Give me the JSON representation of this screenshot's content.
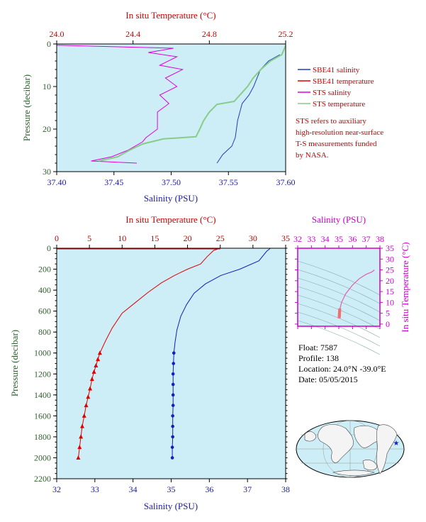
{
  "colors": {
    "panel_bg": "#cdeef6",
    "sbe_salinity": "#1f3fbf",
    "sbe_temperature": "#e00000",
    "sts_salinity": "#e000e0",
    "sts_temperature": "#88cc88",
    "deep_temperature": "#e00000",
    "deep_salinity": "#1020c0"
  },
  "legend": {
    "items": [
      {
        "label": "SBE41 salinity",
        "color": "#1f3fbf"
      },
      {
        "label": "SBE41 temperature",
        "color": "#e00000"
      },
      {
        "label": "STS salinity",
        "color": "#e000e0"
      },
      {
        "label": "STS temperature",
        "color": "#88cc88"
      }
    ],
    "note_lines": [
      "STS refers to auxiliary",
      "high-resolution near-surface",
      "T-S measurements funded",
      "by NASA."
    ]
  },
  "info": {
    "float": "Float:  7587",
    "profile": "Profile:  138",
    "location": "Location:  24.0°N  -39.0°E",
    "date": "Date:  05/05/2015"
  },
  "chart_data": [
    {
      "type": "line",
      "panel": "near-surface profile",
      "xlabel_bottom": "Salinity (PSU)",
      "xlabel_top": "In situ Temperature (°C)",
      "ylabel": "Pressure (decibar)",
      "salinity_range": [
        37.4,
        37.6
      ],
      "salinity_ticks": [
        "37.40",
        "37.45",
        "37.50",
        "37.55",
        "37.60"
      ],
      "temperature_range": [
        24.0,
        25.2
      ],
      "temperature_ticks": [
        "24.0",
        "24.4",
        "24.8",
        "25.2"
      ],
      "pressure_range": [
        0,
        30
      ],
      "pressure_ticks": [
        "0",
        "10",
        "20",
        "30"
      ],
      "series": [
        {
          "name": "SBE41 salinity",
          "axis": "salinity",
          "points": [
            [
              37.595,
              2.5
            ],
            [
              37.585,
              4
            ],
            [
              37.578,
              6
            ],
            [
              37.575,
              8
            ],
            [
              37.572,
              10
            ],
            [
              37.568,
              12
            ],
            [
              37.562,
              14
            ],
            [
              37.56,
              16
            ],
            [
              37.558,
              18
            ],
            [
              37.557,
              20
            ],
            [
              37.556,
              22
            ],
            [
              37.553,
              24
            ],
            [
              37.545,
              26
            ],
            [
              37.54,
              28
            ]
          ]
        },
        {
          "name": "SBE41 temperature",
          "axis": "temperature",
          "points": [
            [
              25.2,
              0.4
            ],
            [
              25.18,
              2.5
            ],
            [
              25.12,
              4
            ],
            [
              25.07,
              6
            ],
            [
              25.03,
              8
            ],
            [
              25.0,
              10
            ],
            [
              24.96,
              12
            ],
            [
              24.93,
              13.5
            ],
            [
              24.84,
              14.2
            ],
            [
              24.8,
              16
            ],
            [
              24.77,
              18
            ],
            [
              24.75,
              20
            ],
            [
              24.73,
              21.8
            ],
            [
              24.56,
              22.3
            ],
            [
              24.45,
              23.5
            ],
            [
              24.38,
              25
            ],
            [
              24.32,
              26.5
            ],
            [
              24.22,
              27.5
            ]
          ]
        },
        {
          "name": "STS salinity",
          "axis": "salinity",
          "points": [
            [
              37.4,
              0.3
            ],
            [
              37.502,
              1
            ],
            [
              37.48,
              2
            ],
            [
              37.505,
              3
            ],
            [
              37.49,
              5
            ],
            [
              37.51,
              6
            ],
            [
              37.495,
              8
            ],
            [
              37.505,
              10
            ],
            [
              37.49,
              12
            ],
            [
              37.498,
              14
            ],
            [
              37.488,
              16
            ],
            [
              37.488,
              18
            ],
            [
              37.488,
              20
            ],
            [
              37.478,
              22
            ],
            [
              37.475,
              23
            ],
            [
              37.462,
              25
            ],
            [
              37.448,
              26.5
            ],
            [
              37.43,
              27.5
            ],
            [
              37.47,
              28
            ]
          ]
        },
        {
          "name": "STS temperature",
          "axis": "temperature",
          "points": [
            [
              25.2,
              0.4
            ],
            [
              25.18,
              2.5
            ],
            [
              25.12,
              4
            ],
            [
              25.07,
              6
            ],
            [
              25.03,
              8
            ],
            [
              25.0,
              10
            ],
            [
              24.96,
              12
            ],
            [
              24.93,
              13.5
            ],
            [
              24.84,
              14.2
            ],
            [
              24.8,
              16
            ],
            [
              24.77,
              18
            ],
            [
              24.75,
              20
            ],
            [
              24.73,
              21.8
            ],
            [
              24.56,
              22.3
            ],
            [
              24.45,
              23.5
            ],
            [
              24.38,
              25
            ],
            [
              24.32,
              26.5
            ],
            [
              24.22,
              27.5
            ]
          ]
        }
      ]
    },
    {
      "type": "line",
      "panel": "full-depth profile",
      "xlabel_bottom": "Salinity (PSU)",
      "xlabel_top": "In situ Temperature (°C)",
      "ylabel": "Pressure (decibar)",
      "salinity_range": [
        32,
        38
      ],
      "salinity_ticks": [
        "32",
        "33",
        "34",
        "35",
        "36",
        "37",
        "38"
      ],
      "temperature_range": [
        0,
        35
      ],
      "temperature_ticks": [
        "0",
        "5",
        "10",
        "15",
        "20",
        "25",
        "30",
        "35"
      ],
      "pressure_range": [
        0,
        2200
      ],
      "pressure_ticks": [
        "0",
        "200",
        "400",
        "600",
        "800",
        "1000",
        "1200",
        "1400",
        "1600",
        "1800",
        "2000",
        "2200"
      ],
      "series": [
        {
          "name": "temperature",
          "axis": "temperature",
          "points": [
            [
              25.0,
              0
            ],
            [
              24.0,
              20
            ],
            [
              23.0,
              80
            ],
            [
              22.0,
              150
            ],
            [
              20.0,
              200
            ],
            [
              18.0,
              260
            ],
            [
              16.0,
              330
            ],
            [
              14.0,
              420
            ],
            [
              12.0,
              520
            ],
            [
              10.0,
              620
            ],
            [
              8.5,
              760
            ],
            [
              7.5,
              880
            ],
            [
              6.6,
              1000
            ],
            [
              6.3,
              1060
            ],
            [
              6.0,
              1120
            ],
            [
              5.7,
              1180
            ],
            [
              5.4,
              1250
            ],
            [
              5.1,
              1340
            ],
            [
              4.8,
              1420
            ],
            [
              4.5,
              1500
            ],
            [
              4.2,
              1600
            ],
            [
              3.9,
              1700
            ],
            [
              3.7,
              1800
            ],
            [
              3.5,
              1900
            ],
            [
              3.3,
              2000
            ]
          ]
        },
        {
          "name": "salinity",
          "axis": "salinity",
          "points": [
            [
              37.6,
              0
            ],
            [
              37.5,
              30
            ],
            [
              37.3,
              120
            ],
            [
              36.8,
              200
            ],
            [
              36.3,
              260
            ],
            [
              35.9,
              340
            ],
            [
              35.6,
              430
            ],
            [
              35.4,
              540
            ],
            [
              35.25,
              650
            ],
            [
              35.15,
              780
            ],
            [
              35.1,
              900
            ],
            [
              35.07,
              1000
            ],
            [
              35.06,
              1100
            ],
            [
              35.05,
              1200
            ],
            [
              35.05,
              1300
            ],
            [
              35.05,
              1400
            ],
            [
              35.05,
              1500
            ],
            [
              35.04,
              1600
            ],
            [
              35.04,
              1700
            ],
            [
              35.04,
              1800
            ],
            [
              35.03,
              1900
            ],
            [
              35.03,
              2000
            ]
          ]
        }
      ],
      "markers": {
        "temperature_points": [
          [
            6.6,
            1000
          ],
          [
            6.3,
            1060
          ],
          [
            6.0,
            1120
          ],
          [
            5.7,
            1180
          ],
          [
            5.4,
            1250
          ],
          [
            5.1,
            1340
          ],
          [
            4.8,
            1420
          ],
          [
            4.5,
            1500
          ],
          [
            4.2,
            1600
          ],
          [
            3.9,
            1700
          ],
          [
            3.7,
            1800
          ],
          [
            3.5,
            1900
          ],
          [
            3.3,
            2000
          ]
        ],
        "salinity_points": [
          [
            35.07,
            1000
          ],
          [
            35.06,
            1100
          ],
          [
            35.05,
            1200
          ],
          [
            35.05,
            1300
          ],
          [
            35.05,
            1400
          ],
          [
            35.05,
            1500
          ],
          [
            35.04,
            1600
          ],
          [
            35.04,
            1700
          ],
          [
            35.04,
            1800
          ],
          [
            35.03,
            1900
          ],
          [
            35.03,
            2000
          ]
        ]
      }
    },
    {
      "type": "scatter",
      "panel": "T-S diagram",
      "xlabel_top": "Salinity (PSU)",
      "ylabel_right": "In situ Temperature (°C)",
      "salinity_range": [
        32,
        38
      ],
      "salinity_ticks": [
        "32",
        "33",
        "34",
        "35",
        "36",
        "37",
        "38"
      ],
      "temperature_range": [
        -1,
        35
      ],
      "temperature_ticks": [
        "0",
        "5",
        "10",
        "15",
        "20",
        "25",
        "30",
        "35"
      ],
      "curve": [
        [
          35.05,
          3.3
        ],
        [
          35.05,
          5
        ],
        [
          35.08,
          7
        ],
        [
          35.2,
          10
        ],
        [
          35.5,
          14
        ],
        [
          36.0,
          18
        ],
        [
          36.5,
          21
        ],
        [
          37.0,
          23
        ],
        [
          37.4,
          24
        ],
        [
          37.6,
          25
        ]
      ],
      "markers": [
        [
          35.03,
          3.3
        ],
        [
          35.04,
          3.7
        ],
        [
          35.04,
          4.2
        ],
        [
          35.05,
          4.8
        ],
        [
          35.05,
          5.4
        ],
        [
          35.06,
          6.0
        ],
        [
          35.07,
          6.6
        ]
      ]
    }
  ]
}
